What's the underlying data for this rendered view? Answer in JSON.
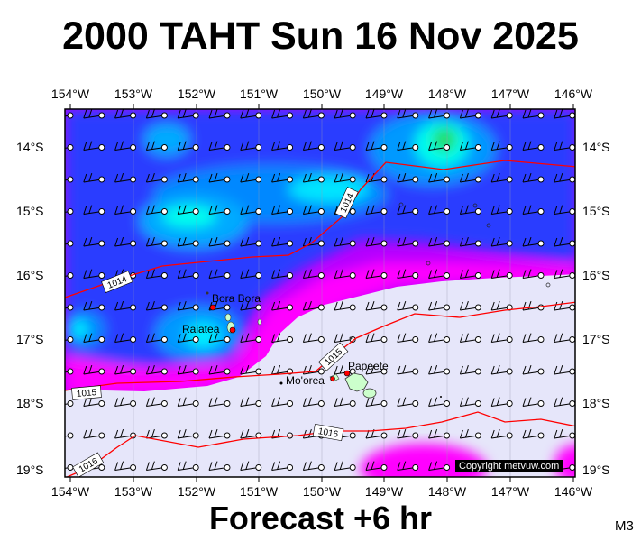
{
  "title": "2000 TAHT Sun 16 Nov 2025",
  "footer": "Forecast +6 hr",
  "code": "M3",
  "credit": "Copyright metvuw.com",
  "axes": {
    "lon_labels": [
      "154°W",
      "153°W",
      "152°W",
      "151°W",
      "150°W",
      "149°W",
      "148°W",
      "147°W",
      "146°W"
    ],
    "lat_labels": [
      "14°S",
      "15°S",
      "16°S",
      "17°S",
      "18°S",
      "19°S"
    ]
  },
  "isobars": [
    {
      "value": 1014,
      "label": "1014"
    },
    {
      "value": 1015,
      "label": "1015"
    },
    {
      "value": 1016,
      "label": "1016"
    }
  ],
  "places": [
    {
      "name": "Bora Bora",
      "label": "Bora Bora"
    },
    {
      "name": "Raiatea",
      "label": "Raiatea"
    },
    {
      "name": "Moorea",
      "label": "Mo'orea"
    },
    {
      "name": "Papeete",
      "label": "Papeete"
    }
  ],
  "colors": {
    "calm": "#e6e6fa",
    "magenta": "#ff00ff",
    "violet": "#b300ff",
    "blue": "#2233ff",
    "skyblue": "#00aaff",
    "cyan": "#00ffff",
    "green": "#22dd66",
    "isobar": "#ff0000",
    "island": "#ccffcc"
  }
}
